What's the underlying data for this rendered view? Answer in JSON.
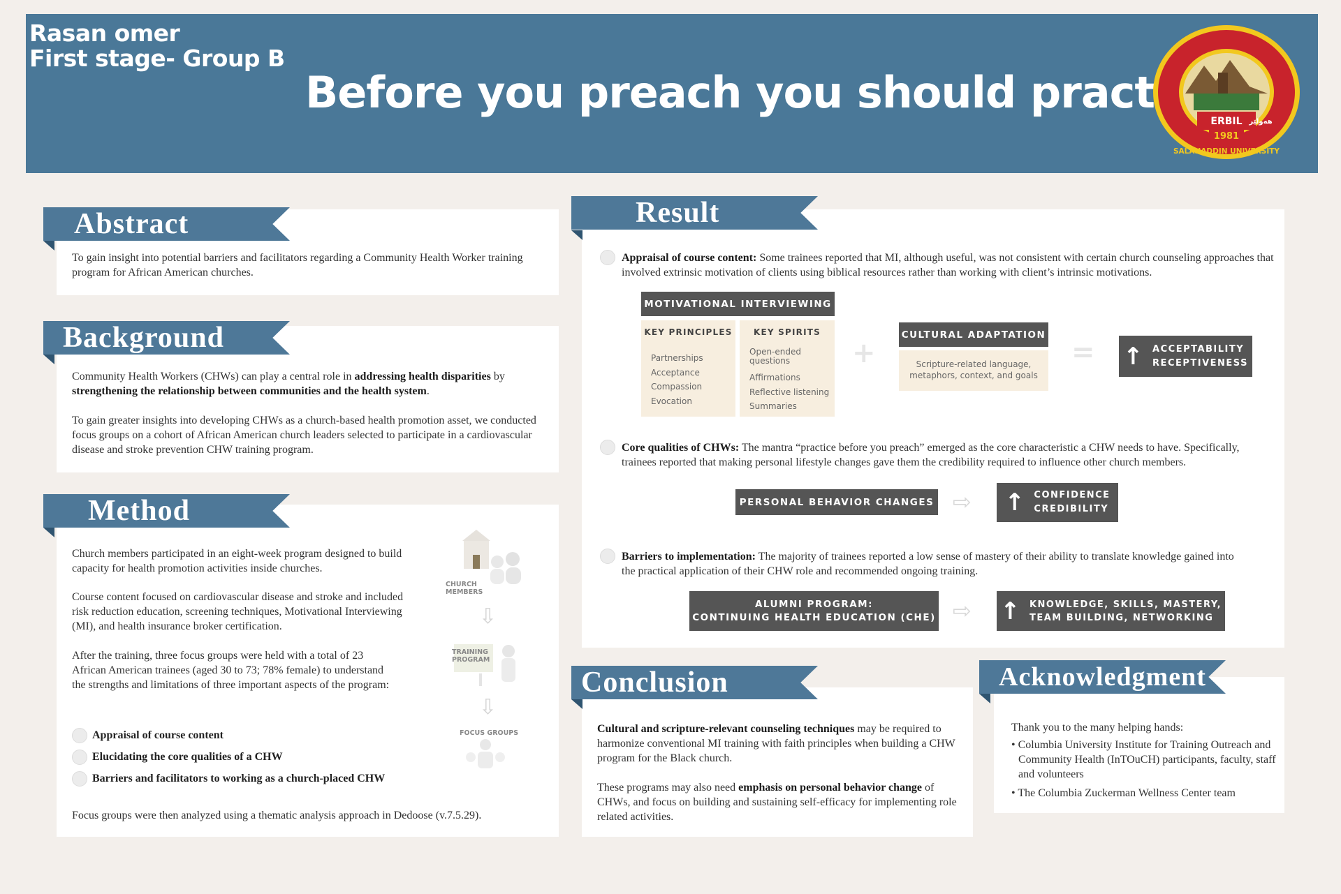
{
  "header": {
    "author_name": "Rasan omer",
    "author_group": "First stage- Group B",
    "title": "Before you preach you should practice",
    "seal_text_top": "ERBIL",
    "seal_year": "1981",
    "seal_text_bottom": "SALAHADDIN UNIVERSITY",
    "seal_text_kurdish": "هەولێر"
  },
  "abstract": {
    "heading": "Abstract",
    "text": "To gain insight into potential barriers and facilitators regarding a Community Health Worker training program for African American churches."
  },
  "background": {
    "heading": "Background",
    "p1_a": "Community Health Workers (CHWs) can play a central role in ",
    "p1_b": "addressing health disparities",
    "p1_c": " by ",
    "p1_d": "strengthening the relationship between communities and the health system",
    "p1_e": ".",
    "p2": "To gain greater insights into developing CHWs as a church-based health promotion asset, we conducted focus groups on a cohort of African American church leaders selected to participate in a cardiovascular disease and stroke prevention CHW training program."
  },
  "method": {
    "heading": "Method",
    "p1": "Church members participated in an eight-week program designed to build capacity for health promotion activities inside churches.",
    "p2": "Course content focused on cardiovascular disease and stroke and included risk reduction education, screening techniques, Motivational Interviewing (MI), and health insurance broker certification.",
    "p3": "After the training, three focus groups were held with a total of 23 African American trainees (aged 30 to 73; 78% female) to understand the strengths and limitations of three important aspects of the program:",
    "items": [
      "Appraisal of course content",
      "Elucidating the core qualities of a CHW",
      "Barriers and facilitators to working as a church-placed CHW"
    ],
    "footer": "Focus groups were then analyzed using a thematic analysis approach in Dedoose (v.7.5.29).",
    "diagram_labels": [
      "CHURCH MEMBERS",
      "TRAINING PROGRAM",
      "FOCUS GROUPS"
    ]
  },
  "result": {
    "heading": "Result",
    "r1_label": "Appraisal of course content:",
    "r1_text": " Some trainees reported that MI, although useful, was not consistent with certain church counseling approaches that involved extrinsic motivation of clients using biblical resources rather than working with client’s intrinsic motivations.",
    "mi_header": "MOTIVATIONAL INTERVIEWING",
    "principles_header": "KEY PRINCIPLES",
    "principles": [
      "Partnerships",
      "Acceptance",
      "Compassion",
      "Evocation"
    ],
    "spirits_header": "KEY SPIRITS",
    "spirits": [
      "Open-ended questions",
      "Affirmations",
      "Reflective listening",
      "Summaries"
    ],
    "cultural_header": "CULTURAL ADAPTATION",
    "cultural_text": "Scripture-related language, metaphors, context, and goals",
    "outcome1_line1": "ACCEPTABILITY",
    "outcome1_line2": "RECEPTIVENESS",
    "r2_label": "Core qualities of CHWs:",
    "r2_text": " The mantra “practice before you preach” emerged as the core characteristic a CHW needs to have. Specifically, trainees reported that making personal lifestyle changes gave them the credibility required to influence other church members.",
    "personal_box": "PERSONAL BEHAVIOR CHANGES",
    "outcome2_line1": "CONFIDENCE",
    "outcome2_line2": "CREDIBILITY",
    "r3_label": "Barriers to implementation:",
    "r3_text": " The majority of trainees reported a low sense of mastery of their ability to translate knowledge gained into the practical application of their CHW role and recommended ongoing training.",
    "alumni_line1": "ALUMNI PROGRAM:",
    "alumni_line2": "CONTINUING HEALTH EDUCATION (CHE)",
    "outcome3_line1": "KNOWLEDGE, SKILLS, MASTERY,",
    "outcome3_line2": "TEAM BUILDING, NETWORKING"
  },
  "conclusion": {
    "heading": "Conclusion",
    "p1_bold": "Cultural and scripture-relevant counseling techniques",
    "p1_rest": " may be required to harmonize conventional MI training with faith principles when building a CHW program for the Black church.",
    "p2_a": "These programs may also need ",
    "p2_bold": "emphasis on personal behavior change",
    "p2_rest": " of CHWs, and focus on building and sustaining self-efficacy for implementing role related activities."
  },
  "acknowledgment": {
    "heading": "Acknowledgment",
    "intro": "Thank you to the many helping hands:",
    "items": [
      "Columbia University Institute for Training Outreach and Community Health (InTOuCH) participants, faculty, staff and volunteers",
      "The Columbia Zuckerman Wellness Center team"
    ]
  },
  "colors": {
    "header_blue": "#4a7898",
    "ribbon_blue": "#4e7898",
    "dark_box": "#555555",
    "beige": "#f7eedf",
    "seal_red": "#c8232c",
    "seal_yellow": "#f2c81e"
  }
}
